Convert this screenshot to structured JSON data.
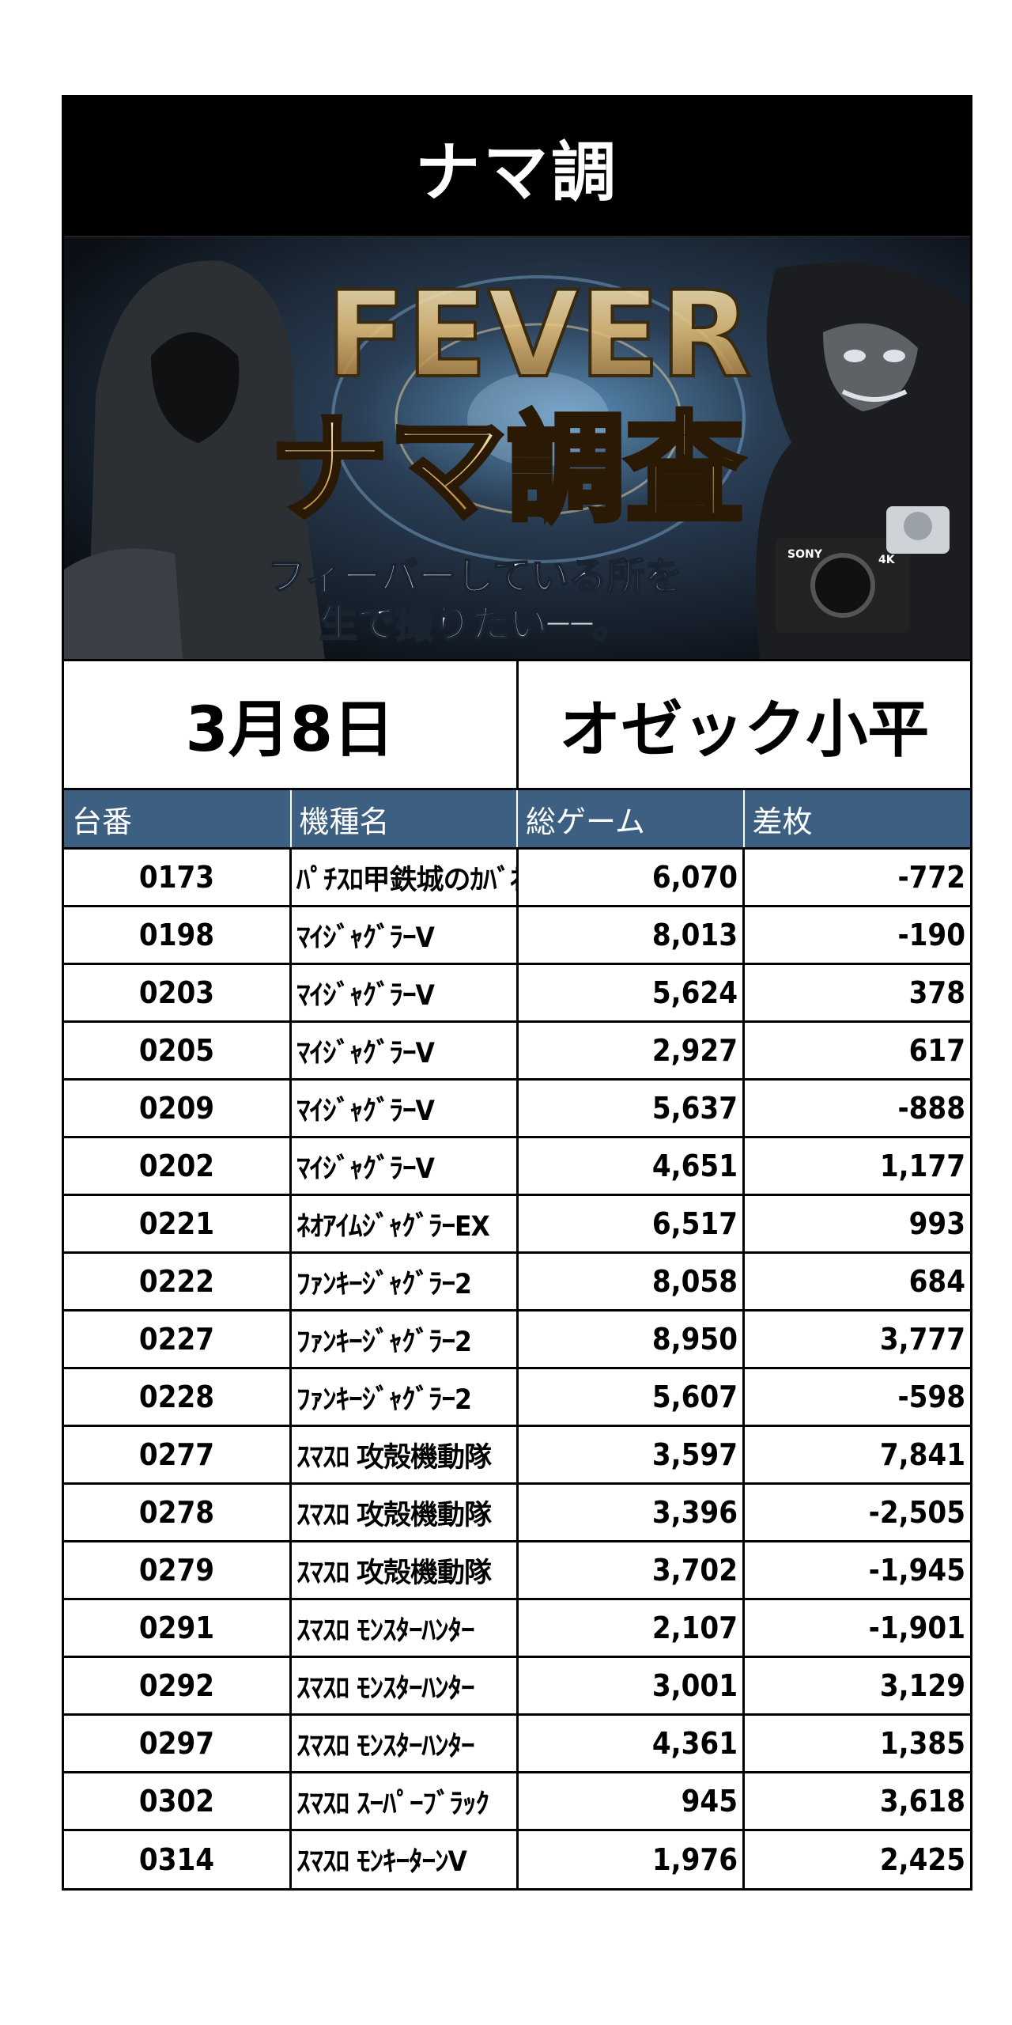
{
  "title": "ナマ調",
  "banner": {
    "heading_en": "FEVER",
    "heading_jp": "ナマ調査",
    "tagline_line1": "フィーバーしている所を",
    "tagline_line2": "生で撮りたい──。",
    "camera_brand": "SONY",
    "camera_badge": "4K"
  },
  "info": {
    "date": "3月8日",
    "store": "オゼック小平"
  },
  "table": {
    "headers": [
      "台番",
      "機種名",
      "総ゲーム",
      "差枚"
    ],
    "rows": [
      {
        "no": "0173",
        "name": "ﾊﾟﾁｽﾛ甲鉄城のｶﾊﾞﾈﾘ",
        "games": "6,070",
        "diff": "-772"
      },
      {
        "no": "0198",
        "name": "ﾏｲｼﾞｬｸﾞﾗｰV",
        "games": "8,013",
        "diff": "-190"
      },
      {
        "no": "0203",
        "name": "ﾏｲｼﾞｬｸﾞﾗｰV",
        "games": "5,624",
        "diff": "378"
      },
      {
        "no": "0205",
        "name": "ﾏｲｼﾞｬｸﾞﾗｰV",
        "games": "2,927",
        "diff": "617"
      },
      {
        "no": "0209",
        "name": "ﾏｲｼﾞｬｸﾞﾗｰV",
        "games": "5,637",
        "diff": "-888"
      },
      {
        "no": "0202",
        "name": "ﾏｲｼﾞｬｸﾞﾗｰV",
        "games": "4,651",
        "diff": "1,177"
      },
      {
        "no": "0221",
        "name": "ﾈｵｱｲﾑｼﾞｬｸﾞﾗｰEX",
        "games": "6,517",
        "diff": "993"
      },
      {
        "no": "0222",
        "name": "ﾌｧﾝｷｰｼﾞｬｸﾞﾗｰ2",
        "games": "8,058",
        "diff": "684"
      },
      {
        "no": "0227",
        "name": "ﾌｧﾝｷｰｼﾞｬｸﾞﾗｰ2",
        "games": "8,950",
        "diff": "3,777"
      },
      {
        "no": "0228",
        "name": "ﾌｧﾝｷｰｼﾞｬｸﾞﾗｰ2",
        "games": "5,607",
        "diff": "-598"
      },
      {
        "no": "0277",
        "name": "ｽﾏｽﾛ 攻殻機動隊",
        "games": "3,597",
        "diff": "7,841"
      },
      {
        "no": "0278",
        "name": "ｽﾏｽﾛ 攻殻機動隊",
        "games": "3,396",
        "diff": "-2,505"
      },
      {
        "no": "0279",
        "name": "ｽﾏｽﾛ 攻殻機動隊",
        "games": "3,702",
        "diff": "-1,945"
      },
      {
        "no": "0291",
        "name": "ｽﾏｽﾛ ﾓﾝｽﾀｰﾊﾝﾀｰ",
        "games": "2,107",
        "diff": "-1,901"
      },
      {
        "no": "0292",
        "name": "ｽﾏｽﾛ ﾓﾝｽﾀｰﾊﾝﾀｰ",
        "games": "3,001",
        "diff": "3,129"
      },
      {
        "no": "0297",
        "name": "ｽﾏｽﾛ ﾓﾝｽﾀｰﾊﾝﾀｰ",
        "games": "4,361",
        "diff": "1,385"
      },
      {
        "no": "0302",
        "name": "ｽﾏｽﾛ ｽｰﾊﾟｰﾌﾞﾗｯｸ",
        "games": "945",
        "diff": "3,618"
      },
      {
        "no": "0314",
        "name": "ｽﾏｽﾛ ﾓﾝｷｰﾀｰﾝV",
        "games": "1,976",
        "diff": "2,425"
      }
    ]
  },
  "colors": {
    "title_bg": "#000000",
    "header_bg": "#3d5f82",
    "header_text": "#ffffff",
    "gold": "#e8c27a"
  },
  "icons": [
    "hooded-figure-image",
    "gorilla-image",
    "camera-mascot-image"
  ]
}
